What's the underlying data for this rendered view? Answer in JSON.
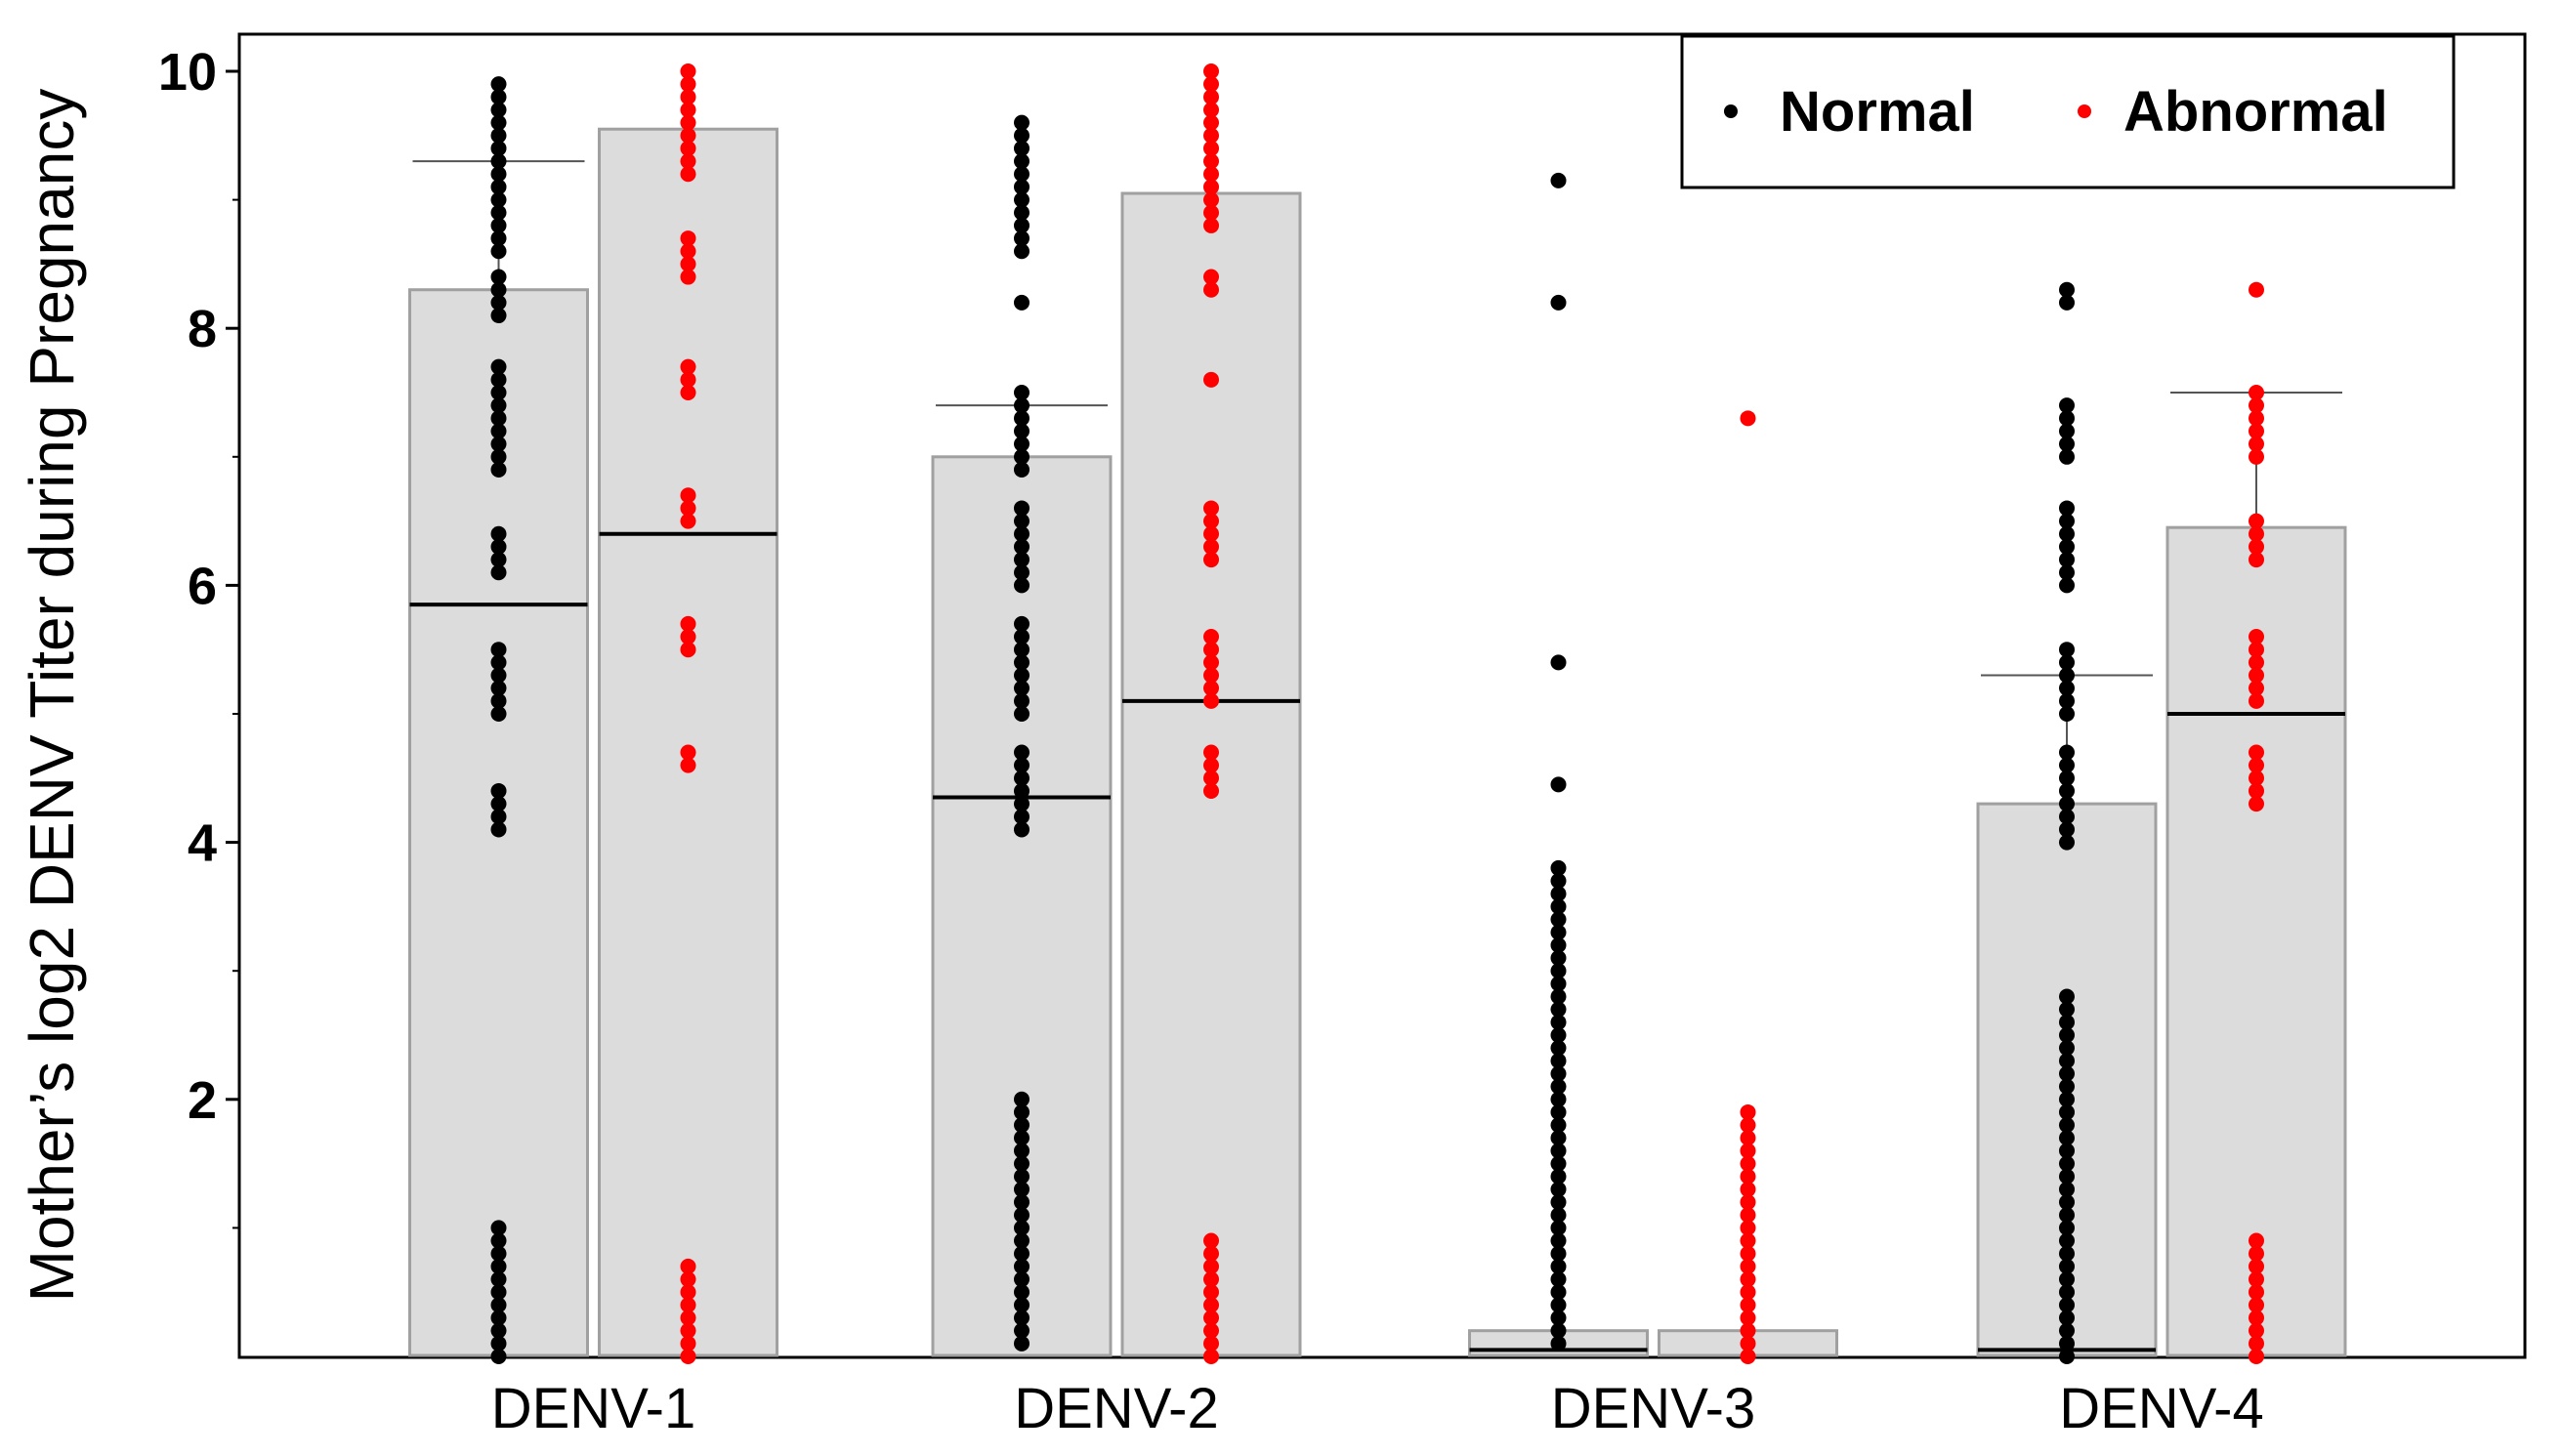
{
  "chart_data": {
    "type": "bar",
    "title": "",
    "xlabel": "",
    "ylabel": "Mother’s log2 DENV Titer during Pregnancy",
    "ylim": [
      0,
      10
    ],
    "yticks": [
      2,
      4,
      6,
      8,
      10
    ],
    "yticks_labels": [
      "2",
      "4",
      "6",
      "8",
      "10"
    ],
    "grid": false,
    "legend_position": "top-right",
    "categories": [
      "DENV-1",
      "DENV-2",
      "DENV-3",
      "DENV-4"
    ],
    "series": [
      {
        "name": "Normal",
        "color": "#000000",
        "bar_values": [
          8.3,
          7.0,
          0.2,
          4.3
        ],
        "median_values": [
          5.85,
          4.35,
          0.05,
          0.05
        ],
        "whisker_values": [
          9.3,
          7.4,
          null,
          5.3
        ],
        "points": [
          [
            0.0,
            0.1,
            0.2,
            0.3,
            0.4,
            0.5,
            0.6,
            0.7,
            0.8,
            0.9,
            1.0,
            4.1,
            4.2,
            4.3,
            4.4,
            5.0,
            5.1,
            5.2,
            5.3,
            5.4,
            5.5,
            6.1,
            6.2,
            6.3,
            6.4,
            6.9,
            7.0,
            7.1,
            7.2,
            7.3,
            7.4,
            7.5,
            7.6,
            7.7,
            8.1,
            8.2,
            8.3,
            8.4,
            8.6,
            8.7,
            8.8,
            8.9,
            9.0,
            9.1,
            9.2,
            9.3,
            9.4,
            9.5,
            9.6,
            9.7,
            9.8,
            9.9
          ],
          [
            0.1,
            0.2,
            0.3,
            0.4,
            0.5,
            0.6,
            0.7,
            0.8,
            0.9,
            1.0,
            1.1,
            1.2,
            1.3,
            1.4,
            1.5,
            1.6,
            1.7,
            1.8,
            1.9,
            2.0,
            4.1,
            4.2,
            4.3,
            4.4,
            4.5,
            4.6,
            4.7,
            5.0,
            5.1,
            5.2,
            5.3,
            5.4,
            5.5,
            5.6,
            5.7,
            6.0,
            6.1,
            6.2,
            6.3,
            6.4,
            6.5,
            6.6,
            6.9,
            7.0,
            7.1,
            7.2,
            7.3,
            7.4,
            7.5,
            8.2,
            8.6,
            8.7,
            8.8,
            8.9,
            9.0,
            9.1,
            9.2,
            9.3,
            9.4,
            9.5,
            9.6
          ],
          [
            0.1,
            0.2,
            0.3,
            0.4,
            0.5,
            0.6,
            0.7,
            0.8,
            0.9,
            1.0,
            1.1,
            1.2,
            1.3,
            1.4,
            1.5,
            1.6,
            1.7,
            1.8,
            1.9,
            2.0,
            2.1,
            2.2,
            2.3,
            2.4,
            2.5,
            2.6,
            2.7,
            2.8,
            2.9,
            3.0,
            3.1,
            3.2,
            3.3,
            3.4,
            3.5,
            3.6,
            3.7,
            3.8,
            4.45,
            5.4,
            8.2,
            9.15
          ],
          [
            0.0,
            0.1,
            0.2,
            0.3,
            0.4,
            0.5,
            0.6,
            0.7,
            0.8,
            0.9,
            1.0,
            1.1,
            1.2,
            1.3,
            1.4,
            1.5,
            1.6,
            1.7,
            1.8,
            1.9,
            2.0,
            2.1,
            2.2,
            2.3,
            2.4,
            2.5,
            2.6,
            2.7,
            2.8,
            4.0,
            4.1,
            4.2,
            4.3,
            4.4,
            4.5,
            4.6,
            4.7,
            5.0,
            5.1,
            5.2,
            5.3,
            5.4,
            5.5,
            6.0,
            6.1,
            6.2,
            6.3,
            6.4,
            6.5,
            6.6,
            7.0,
            7.1,
            7.2,
            7.3,
            7.4,
            8.2,
            8.3
          ]
        ]
      },
      {
        "name": "Abnormal",
        "color": "#ff0000",
        "bar_values": [
          9.55,
          9.05,
          0.2,
          6.45
        ],
        "median_values": [
          6.4,
          5.1,
          null,
          5.0
        ],
        "whisker_values": [
          null,
          null,
          null,
          7.5
        ],
        "points": [
          [
            0.0,
            0.1,
            0.2,
            0.3,
            0.4,
            0.5,
            0.6,
            0.7,
            4.6,
            4.7,
            5.5,
            5.6,
            5.7,
            6.5,
            6.6,
            6.7,
            7.5,
            7.6,
            7.7,
            8.4,
            8.5,
            8.6,
            8.7,
            9.2,
            9.3,
            9.4,
            9.5,
            9.6,
            9.7,
            9.8,
            9.9,
            10.0
          ],
          [
            0.0,
            0.1,
            0.2,
            0.3,
            0.4,
            0.5,
            0.6,
            0.7,
            0.8,
            0.9,
            4.4,
            4.5,
            4.6,
            4.7,
            5.1,
            5.2,
            5.3,
            5.4,
            5.5,
            5.6,
            6.2,
            6.3,
            6.4,
            6.5,
            6.6,
            7.6,
            8.3,
            8.4,
            8.8,
            8.9,
            9.0,
            9.1,
            9.2,
            9.3,
            9.4,
            9.5,
            9.6,
            9.7,
            9.8,
            9.9,
            10.0
          ],
          [
            0.0,
            0.1,
            0.2,
            0.3,
            0.4,
            0.5,
            0.6,
            0.7,
            0.8,
            0.9,
            1.0,
            1.1,
            1.2,
            1.3,
            1.4,
            1.5,
            1.6,
            1.7,
            1.8,
            1.9,
            7.3
          ],
          [
            0.0,
            0.1,
            0.2,
            0.3,
            0.4,
            0.5,
            0.6,
            0.7,
            0.8,
            0.9,
            4.3,
            4.4,
            4.5,
            4.6,
            4.7,
            5.1,
            5.2,
            5.3,
            5.4,
            5.5,
            5.6,
            6.2,
            6.3,
            6.4,
            6.5,
            7.0,
            7.1,
            7.2,
            7.3,
            7.4,
            7.5,
            8.3
          ]
        ]
      }
    ],
    "legend": [
      {
        "label": "Normal",
        "color": "#000000"
      },
      {
        "label": "Abnormal",
        "color": "#ff0000"
      }
    ]
  },
  "colors": {
    "bar_fill": "#dcdcdc",
    "bar_stroke": "#a0a0a0",
    "axis": "#000000",
    "whisker": "#555555"
  }
}
